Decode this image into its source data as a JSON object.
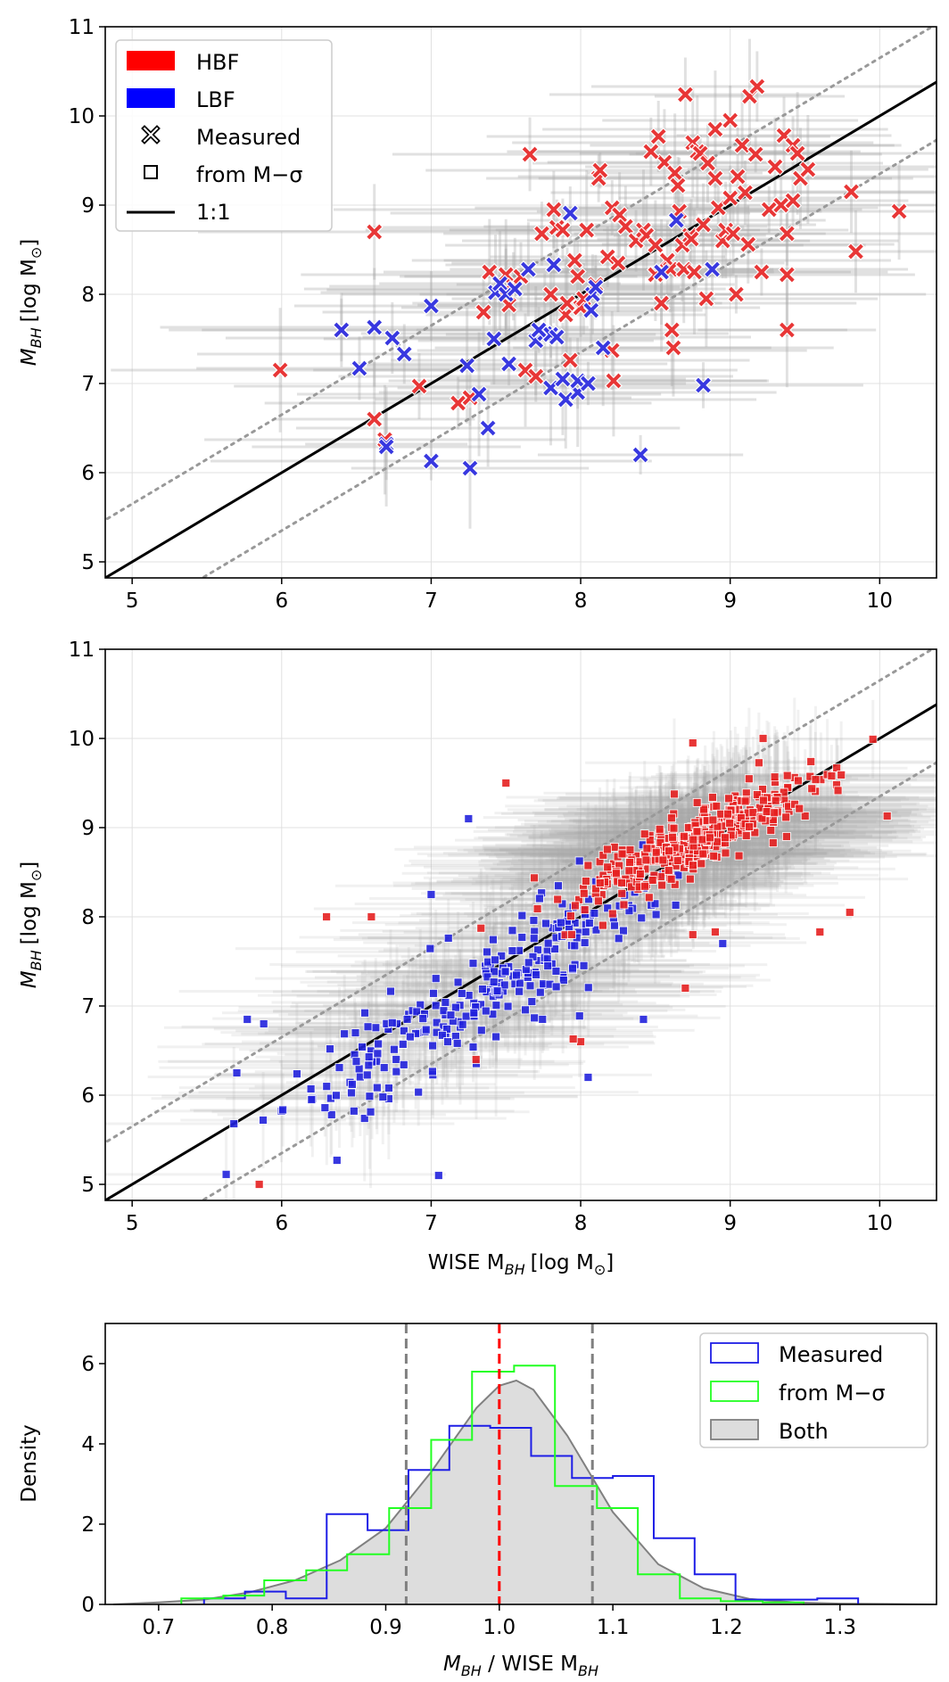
{
  "chart_data": [
    {
      "type": "scatter",
      "panel": "top",
      "ylabel_main": "M",
      "ylabel_sub": "BH",
      "ylabel_unit": "[log M",
      "ylabel_unit_sub": "⊙",
      "ylabel_close": "]",
      "xlim": [
        4.82,
        10.38
      ],
      "ylim": [
        4.82,
        11.0
      ],
      "xticks": [
        "5",
        "6",
        "7",
        "8",
        "9",
        "10"
      ],
      "yticks": [
        "5",
        "6",
        "7",
        "8",
        "9",
        "10",
        "11"
      ],
      "legend": [
        "HBF",
        "LBF",
        "Measured",
        "from M−σ",
        "1:1"
      ],
      "colors": {
        "HBF": "#e62020",
        "LBF": "#2222dd",
        "one_to_one": "#000000",
        "dotted": "#999999"
      },
      "hbf_points": [
        [
          6.4,
          7.6
        ],
        [
          5.99,
          7.15
        ],
        [
          6.62,
          8.7
        ],
        [
          6.62,
          6.6
        ],
        [
          6.69,
          6.37
        ],
        [
          6.92,
          6.97
        ],
        [
          7.18,
          6.78
        ],
        [
          7.26,
          6.84
        ],
        [
          7.39,
          8.25
        ],
        [
          7.5,
          8.22
        ],
        [
          7.52,
          7.88
        ],
        [
          7.55,
          8.09
        ],
        [
          7.6,
          8.2
        ],
        [
          7.63,
          7.15
        ],
        [
          7.66,
          9.57
        ],
        [
          7.7,
          7.08
        ],
        [
          7.74,
          8.68
        ],
        [
          7.8,
          8.0
        ],
        [
          7.82,
          8.95
        ],
        [
          7.84,
          8.75
        ],
        [
          7.9,
          7.77
        ],
        [
          7.88,
          8.72
        ],
        [
          7.91,
          7.9
        ],
        [
          7.93,
          7.26
        ],
        [
          7.96,
          8.38
        ],
        [
          7.98,
          8.2
        ],
        [
          8.0,
          7.85
        ],
        [
          8.02,
          7.95
        ],
        [
          8.04,
          8.72
        ],
        [
          8.1,
          8.11
        ],
        [
          8.12,
          9.3
        ],
        [
          8.13,
          9.39
        ],
        [
          8.18,
          8.42
        ],
        [
          8.21,
          8.97
        ],
        [
          8.21,
          7.37
        ],
        [
          8.22,
          7.03
        ],
        [
          8.25,
          8.35
        ],
        [
          8.26,
          8.89
        ],
        [
          8.3,
          8.76
        ],
        [
          8.37,
          8.6
        ],
        [
          8.42,
          8.72
        ],
        [
          8.44,
          8.66
        ],
        [
          8.5,
          8.55
        ],
        [
          8.5,
          8.22
        ],
        [
          8.52,
          9.77
        ],
        [
          8.54,
          7.9
        ],
        [
          8.56,
          9.48
        ],
        [
          8.58,
          8.38
        ],
        [
          8.6,
          8.28
        ],
        [
          8.61,
          7.6
        ],
        [
          8.62,
          7.4
        ],
        [
          8.63,
          9.36
        ],
        [
          8.65,
          9.22
        ],
        [
          8.66,
          8.93
        ],
        [
          8.68,
          8.55
        ],
        [
          8.69,
          8.28
        ],
        [
          8.7,
          10.24
        ],
        [
          8.73,
          8.66
        ],
        [
          8.75,
          9.7
        ],
        [
          8.76,
          8.25
        ],
        [
          8.78,
          9.6
        ],
        [
          8.8,
          9.58
        ],
        [
          8.82,
          8.78
        ],
        [
          8.84,
          7.95
        ],
        [
          8.85,
          9.47
        ],
        [
          8.9,
          9.85
        ],
        [
          8.9,
          9.3
        ],
        [
          8.92,
          8.97
        ],
        [
          8.95,
          8.6
        ],
        [
          8.97,
          8.72
        ],
        [
          9.0,
          9.95
        ],
        [
          9.0,
          9.08
        ],
        [
          9.02,
          8.68
        ],
        [
          9.05,
          9.32
        ],
        [
          9.08,
          9.67
        ],
        [
          9.1,
          9.14
        ],
        [
          9.12,
          8.56
        ],
        [
          9.13,
          10.22
        ],
        [
          9.17,
          9.57
        ],
        [
          9.18,
          10.33
        ],
        [
          9.21,
          8.25
        ],
        [
          9.26,
          8.95
        ],
        [
          9.3,
          9.43
        ],
        [
          9.34,
          9.0
        ],
        [
          9.36,
          9.78
        ],
        [
          9.38,
          8.68
        ],
        [
          9.38,
          7.6
        ],
        [
          9.38,
          8.22
        ],
        [
          9.42,
          9.67
        ],
        [
          9.45,
          9.58
        ],
        [
          9.47,
          9.3
        ],
        [
          9.52,
          9.4
        ],
        [
          9.81,
          9.15
        ],
        [
          9.84,
          8.48
        ],
        [
          10.13,
          8.93
        ],
        [
          9.42,
          9.05
        ],
        [
          9.04,
          8.0
        ],
        [
          8.74,
          8.62
        ],
        [
          8.47,
          9.6
        ],
        [
          7.5,
          8.05
        ],
        [
          7.35,
          7.8
        ]
      ],
      "lbf_points": [
        [
          6.4,
          7.6
        ],
        [
          6.52,
          7.17
        ],
        [
          6.62,
          7.63
        ],
        [
          6.74,
          7.51
        ],
        [
          6.82,
          7.33
        ],
        [
          6.7,
          6.32
        ],
        [
          6.7,
          6.29
        ],
        [
          7.0,
          6.13
        ],
        [
          7.0,
          7.87
        ],
        [
          7.24,
          7.2
        ],
        [
          7.26,
          6.05
        ],
        [
          7.32,
          6.88
        ],
        [
          7.38,
          6.5
        ],
        [
          7.43,
          8.02
        ],
        [
          7.46,
          8.12
        ],
        [
          7.5,
          8.0
        ],
        [
          7.52,
          7.22
        ],
        [
          7.56,
          8.06
        ],
        [
          7.65,
          8.28
        ],
        [
          7.7,
          7.48
        ],
        [
          7.76,
          7.56
        ],
        [
          7.8,
          6.95
        ],
        [
          7.8,
          7.55
        ],
        [
          7.82,
          8.33
        ],
        [
          7.84,
          7.52
        ],
        [
          7.88,
          7.05
        ],
        [
          7.9,
          6.82
        ],
        [
          7.93,
          8.91
        ],
        [
          7.98,
          6.9
        ],
        [
          7.98,
          7.03
        ],
        [
          8.05,
          7.0
        ],
        [
          8.07,
          7.82
        ],
        [
          8.08,
          8.0
        ],
        [
          8.1,
          8.08
        ],
        [
          8.15,
          7.4
        ],
        [
          8.4,
          6.2
        ],
        [
          8.54,
          8.25
        ],
        [
          8.64,
          8.83
        ],
        [
          8.82,
          6.98
        ],
        [
          8.88,
          8.28
        ],
        [
          7.42,
          7.5
        ],
        [
          7.72,
          7.6
        ]
      ]
    },
    {
      "type": "scatter",
      "panel": "middle",
      "ylabel_main": "M",
      "ylabel_sub": "BH",
      "ylabel_unit": "[log M",
      "ylabel_unit_sub": "⊙",
      "ylabel_close": "]",
      "xlabel_pre": "WISE M",
      "xlabel_sub": "BH",
      "xlabel_unit": "[log M",
      "xlabel_unit_sub": "⊙",
      "xlabel_close": "]",
      "xlim": [
        4.82,
        10.38
      ],
      "ylim": [
        4.82,
        11.0
      ],
      "xticks": [
        "5",
        "6",
        "7",
        "8",
        "9",
        "10"
      ],
      "yticks": [
        "5",
        "6",
        "7",
        "8",
        "9",
        "10",
        "11"
      ],
      "n_hbf": 380,
      "n_lbf": 260,
      "hbf_center": [
        8.75,
        8.85
      ],
      "lbf_center": [
        7.4,
        7.2
      ],
      "outliers_hbf": [
        [
          7.5,
          9.5
        ],
        [
          7.3,
          6.4
        ],
        [
          6.3,
          8.0
        ],
        [
          6.6,
          8.0
        ],
        [
          5.85,
          5.0
        ],
        [
          9.6,
          7.83
        ],
        [
          9.8,
          8.05
        ],
        [
          10.05,
          9.13
        ],
        [
          9.22,
          10.0
        ],
        [
          8.75,
          9.95
        ],
        [
          8.0,
          6.6
        ],
        [
          7.95,
          6.63
        ],
        [
          8.9,
          7.83
        ],
        [
          8.7,
          7.2
        ],
        [
          8.75,
          7.8
        ]
      ],
      "outliers_lbf": [
        [
          7.25,
          9.1
        ],
        [
          7.0,
          8.25
        ],
        [
          5.7,
          6.25
        ],
        [
          5.77,
          6.85
        ],
        [
          5.88,
          6.8
        ],
        [
          6.2,
          5.95
        ],
        [
          7.05,
          5.1
        ],
        [
          6.37,
          5.27
        ],
        [
          8.42,
          6.85
        ],
        [
          8.95,
          7.7
        ],
        [
          8.05,
          6.2
        ]
      ]
    },
    {
      "type": "histogram",
      "panel": "bottom",
      "ylabel": "Density",
      "xlabel_pre": "M",
      "xlabel_sub": "BH",
      "xlabel_mid": " / WISE M",
      "xlabel_sub2": "BH",
      "xlim": [
        0.653,
        1.385
      ],
      "ylim": [
        0,
        7.0
      ],
      "xticks": [
        "0.7",
        "0.8",
        "0.9",
        "1.0",
        "1.1",
        "1.2",
        "1.3"
      ],
      "yticks": [
        "0",
        "2",
        "4",
        "6"
      ],
      "legend": [
        "Measured",
        "from M−σ",
        "Both"
      ],
      "colors": {
        "measured": "#1e1ee6",
        "m_sigma": "#22ff22",
        "both_fill": "#dddddd",
        "both_edge": "#808080",
        "median": "#ff0000",
        "percentile": "#808080"
      },
      "measured_edges": [
        0.74,
        0.776,
        0.812,
        0.848,
        0.884,
        0.92,
        0.956,
        0.992,
        1.028,
        1.064,
        1.1,
        1.136,
        1.172,
        1.208,
        1.244,
        1.28,
        1.316
      ],
      "measured_values": [
        0.15,
        0.32,
        0.15,
        2.25,
        1.85,
        3.35,
        4.45,
        4.4,
        3.7,
        3.15,
        3.2,
        1.65,
        0.75,
        0.12,
        0.12,
        0.15
      ],
      "m_sigma_edges": [
        0.72,
        0.757,
        0.793,
        0.83,
        0.866,
        0.903,
        0.94,
        0.976,
        1.013,
        1.049,
        1.086,
        1.122,
        1.159,
        1.195,
        1.232,
        1.268
      ],
      "m_sigma_values": [
        0.15,
        0.22,
        0.6,
        0.85,
        1.25,
        2.4,
        4.1,
        5.8,
        5.95,
        2.95,
        2.4,
        0.75,
        0.15,
        0.08,
        0.05
      ],
      "kde_x": [
        0.66,
        0.7,
        0.74,
        0.78,
        0.82,
        0.86,
        0.9,
        0.94,
        0.98,
        1.0,
        1.015,
        1.03,
        1.06,
        1.1,
        1.14,
        1.18,
        1.22,
        1.26,
        1.3,
        1.34,
        1.385
      ],
      "kde_y": [
        0.0,
        0.05,
        0.12,
        0.3,
        0.6,
        1.1,
        1.9,
        3.3,
        4.9,
        5.45,
        5.58,
        5.35,
        4.2,
        2.3,
        1.0,
        0.4,
        0.14,
        0.05,
        0.02,
        0.01,
        0.0
      ],
      "median": 1.0,
      "percentiles": [
        0.918,
        1.082
      ]
    }
  ]
}
